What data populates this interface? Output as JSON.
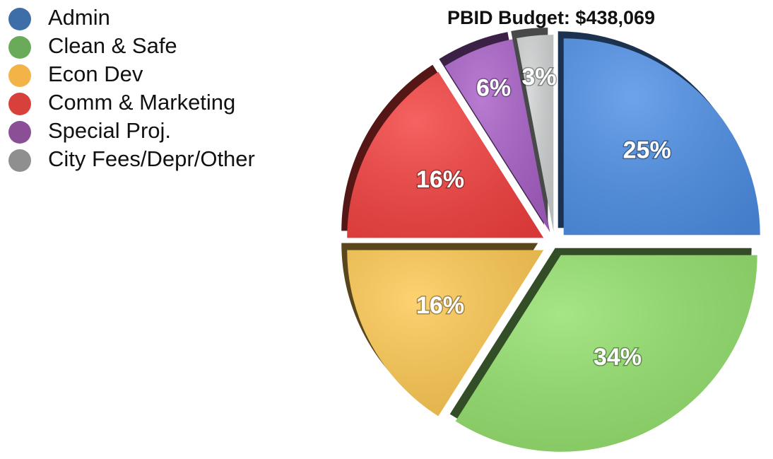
{
  "chart_data": {
    "type": "pie",
    "title": "PBID Budget: $438,069",
    "categories": [
      "Admin",
      "Clean & Safe",
      "Econ Dev",
      "Comm & Marketing",
      "Special Proj.",
      "City Fees/Depr/Other"
    ],
    "values": [
      25,
      34,
      16,
      16,
      6,
      3
    ],
    "value_labels": [
      "25%",
      "34%",
      "16%",
      "16%",
      "6%",
      "3%"
    ],
    "colors": [
      "#4d8fe6",
      "#93e06c",
      "#fdc851",
      "#f4403f",
      "#a85fc7",
      "#cfd2d2"
    ],
    "legend_colors": [
      "#3e6ea7",
      "#6aab5a",
      "#f2b347",
      "#d8403c",
      "#8a4f95",
      "#8f8f8f"
    ]
  }
}
